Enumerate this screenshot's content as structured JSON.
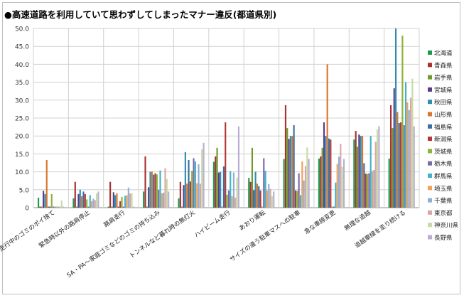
{
  "chart_data": {
    "type": "bar",
    "title": "●高速道路を利用していて思わずしてしまったマナー違反(都道県別)",
    "ylim": [
      0,
      50
    ],
    "yticks": [
      "0",
      "5.0",
      "10.0",
      "15.0",
      "20.0",
      "25.0",
      "30.0",
      "35.0",
      "40.0",
      "45.0",
      "50.0"
    ],
    "grid": true,
    "legend_position": "right",
    "categories": [
      "走行中のゴミのポイ捨て",
      "緊急時以外の路肩停止",
      "路肩走行",
      "SA・PA～家庭ゴミなどのゴミの持ち込み",
      "トンネルなど暮れ時の無灯火",
      "ハイビーム走行",
      "あおり運転",
      "サイズの違う駐車マスへの駐車",
      "急な車線変更",
      "無理な追越",
      "追越車線を走り続ける"
    ],
    "series": [
      {
        "name": "北海道",
        "color": "#1e9a4e",
        "values": [
          2.8,
          2.6,
          0.3,
          4.5,
          2.6,
          12.8,
          8.3,
          13.6,
          13.7,
          19.0,
          13.7
        ]
      },
      {
        "name": "青森県",
        "color": "#a8312f",
        "values": [
          0.3,
          7.2,
          7.2,
          14.3,
          7.2,
          14.3,
          7.2,
          28.6,
          14.3,
          21.4,
          28.6
        ]
      },
      {
        "name": "岩手県",
        "color": "#6e9a28",
        "values": [
          0.3,
          0.3,
          0.3,
          0.3,
          0.3,
          16.7,
          16.7,
          22.2,
          16.7,
          17.0,
          22.2
        ]
      },
      {
        "name": "宮城県",
        "color": "#5b3d87",
        "values": [
          4.7,
          3.8,
          4.3,
          5.7,
          6.3,
          9.8,
          4.9,
          19.2,
          23.8,
          20.4,
          33.3
        ]
      },
      {
        "name": "秋田県",
        "color": "#2f8db0",
        "values": [
          3.8,
          5.0,
          3.5,
          10.0,
          15.5,
          10.0,
          10.0,
          20.0,
          20.0,
          20.0,
          50.0
        ]
      },
      {
        "name": "山形県",
        "color": "#d9762b",
        "values": [
          13.3,
          3.2,
          4.0,
          10.1,
          6.7,
          0.3,
          6.7,
          20.0,
          40.0,
          20.0,
          26.7
        ]
      },
      {
        "name": "福島県",
        "color": "#3c6ea6",
        "values": [
          0.3,
          4.5,
          0.3,
          9.2,
          13.3,
          11.5,
          6.0,
          23.0,
          19.3,
          12.4,
          23.6
        ]
      },
      {
        "name": "新潟県",
        "color": "#b33836",
        "values": [
          0.3,
          3.8,
          1.8,
          9.6,
          7.3,
          23.8,
          4.8,
          4.8,
          19.0,
          9.5,
          23.8
        ]
      },
      {
        "name": "茨城県",
        "color": "#8db236",
        "values": [
          3.8,
          2.3,
          3.0,
          9.3,
          10.3,
          3.6,
          0.3,
          4.7,
          0.3,
          9.4,
          48.0
        ]
      },
      {
        "name": "栃木県",
        "color": "#7c6aa6",
        "values": [
          0.3,
          0.3,
          0.3,
          5.0,
          13.8,
          4.8,
          13.8,
          9.6,
          0.3,
          9.6,
          23.0
        ]
      },
      {
        "name": "群馬県",
        "color": "#3fb4c9",
        "values": [
          0.3,
          3.5,
          3.3,
          10.4,
          12.9,
          10.2,
          10.3,
          3.5,
          7.0,
          20.0,
          35.0
        ]
      },
      {
        "name": "埼玉県",
        "color": "#f0a15c",
        "values": [
          0.3,
          1.8,
          3.5,
          4.0,
          6.8,
          3.2,
          4.8,
          12.9,
          12.2,
          10.2,
          29.4
        ]
      },
      {
        "name": "千葉県",
        "color": "#8eaed6",
        "values": [
          0.3,
          2.5,
          5.6,
          4.2,
          12.1,
          9.8,
          6.6,
          7.6,
          14.2,
          10.5,
          27.2
        ]
      },
      {
        "name": "東京都",
        "color": "#dba6a5",
        "values": [
          0.3,
          2.1,
          4.0,
          11.0,
          6.7,
          2.8,
          5.2,
          11.6,
          17.8,
          18.4,
          30.7
        ]
      },
      {
        "name": "神奈川県",
        "color": "#c7dba3",
        "values": [
          2.0,
          4.0,
          4.0,
          8.0,
          16.3,
          8.4,
          3.2,
          16.8,
          11.4,
          21.8,
          36.0
        ]
      },
      {
        "name": "長野県",
        "color": "#b8aed4",
        "values": [
          0.3,
          4.5,
          0.3,
          4.5,
          18.1,
          22.7,
          4.5,
          13.6,
          13.6,
          22.7,
          22.7
        ]
      }
    ]
  }
}
